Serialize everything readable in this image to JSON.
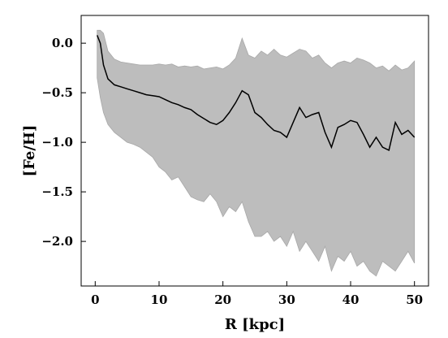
{
  "chart_data": {
    "type": "area",
    "title": "",
    "xlabel": "R [kpc]",
    "ylabel": "[Fe/H]",
    "xlim": [
      -2.2,
      52.2
    ],
    "ylim": [
      -2.45,
      0.28
    ],
    "xticks": [
      0,
      10,
      20,
      30,
      40,
      50
    ],
    "xtick_labels": [
      "0",
      "10",
      "20",
      "30",
      "40",
      "50"
    ],
    "yticks": [
      0.0,
      -0.5,
      -1.0,
      -1.5,
      -2.0
    ],
    "ytick_labels": [
      "0.0",
      "−0.5",
      "−1.0",
      "−1.5",
      "−2.0"
    ],
    "grid": false,
    "legend": "none",
    "colors": {
      "band": "#bdbdbd",
      "band_edge": "#a8a8a8",
      "median": "#000000",
      "axes": "#000000"
    },
    "x": [
      0.3,
      0.8,
      1.3,
      2,
      3,
      4,
      5,
      6,
      7,
      8,
      9,
      10,
      11,
      12,
      13,
      14,
      15,
      16,
      17,
      18,
      19,
      20,
      21,
      22,
      23,
      24,
      25,
      26,
      27,
      28,
      29,
      30,
      31,
      32,
      33,
      34,
      35,
      36,
      37,
      38,
      39,
      40,
      41,
      42,
      43,
      44,
      45,
      46,
      47,
      48,
      49,
      50
    ],
    "median": [
      0.08,
      0.0,
      -0.22,
      -0.36,
      -0.42,
      -0.44,
      -0.46,
      -0.48,
      -0.5,
      -0.52,
      -0.53,
      -0.54,
      -0.57,
      -0.6,
      -0.62,
      -0.65,
      -0.67,
      -0.72,
      -0.76,
      -0.8,
      -0.82,
      -0.78,
      -0.7,
      -0.6,
      -0.48,
      -0.52,
      -0.7,
      -0.75,
      -0.82,
      -0.88,
      -0.9,
      -0.95,
      -0.8,
      -0.65,
      -0.75,
      -0.72,
      -0.7,
      -0.9,
      -1.05,
      -0.85,
      -0.82,
      -0.78,
      -0.8,
      -0.92,
      -1.05,
      -0.95,
      -1.05,
      -1.08,
      -0.8,
      -0.92,
      -0.88,
      -0.95
    ],
    "upper": [
      0.13,
      0.13,
      0.1,
      -0.08,
      -0.16,
      -0.19,
      -0.2,
      -0.21,
      -0.22,
      -0.22,
      -0.22,
      -0.21,
      -0.22,
      -0.21,
      -0.24,
      -0.23,
      -0.24,
      -0.23,
      -0.26,
      -0.25,
      -0.24,
      -0.26,
      -0.22,
      -0.15,
      0.05,
      -0.12,
      -0.15,
      -0.08,
      -0.12,
      -0.06,
      -0.12,
      -0.14,
      -0.1,
      -0.06,
      -0.08,
      -0.15,
      -0.12,
      -0.2,
      -0.25,
      -0.2,
      -0.18,
      -0.2,
      -0.15,
      -0.17,
      -0.2,
      -0.25,
      -0.23,
      -0.28,
      -0.22,
      -0.27,
      -0.25,
      -0.18
    ],
    "lower": [
      -0.35,
      -0.55,
      -0.7,
      -0.82,
      -0.9,
      -0.95,
      -1.0,
      -1.02,
      -1.05,
      -1.1,
      -1.15,
      -1.25,
      -1.3,
      -1.38,
      -1.35,
      -1.45,
      -1.55,
      -1.58,
      -1.6,
      -1.52,
      -1.6,
      -1.75,
      -1.65,
      -1.7,
      -1.6,
      -1.8,
      -1.95,
      -1.95,
      -1.9,
      -2.0,
      -1.95,
      -2.05,
      -1.9,
      -2.1,
      -2.0,
      -2.1,
      -2.2,
      -2.05,
      -2.3,
      -2.15,
      -2.2,
      -2.1,
      -2.25,
      -2.2,
      -2.3,
      -2.35,
      -2.2,
      -2.25,
      -2.3,
      -2.2,
      -2.1,
      -2.22
    ]
  }
}
